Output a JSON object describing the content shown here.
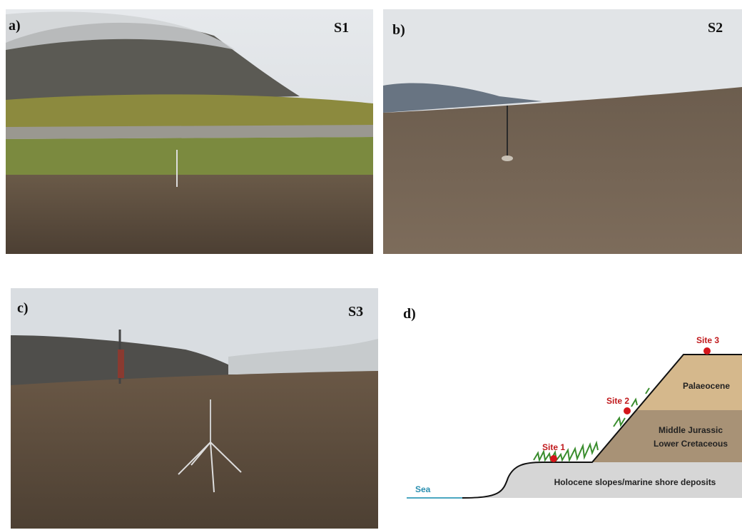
{
  "panels": [
    {
      "label": "a)",
      "site": "S1"
    },
    {
      "label": "b)",
      "site": "S2"
    },
    {
      "label": "c)",
      "site": "S3"
    }
  ],
  "diagram": {
    "label": "d)",
    "sites": [
      "Site 1",
      "Site 2",
      "Site 3"
    ],
    "layers": {
      "top": "Palaeocene",
      "middle": [
        "Middle Jurassic",
        "Lower Cretaceous"
      ],
      "bottom": "Holocene slopes/marine shore deposits"
    },
    "sea": "Sea"
  }
}
